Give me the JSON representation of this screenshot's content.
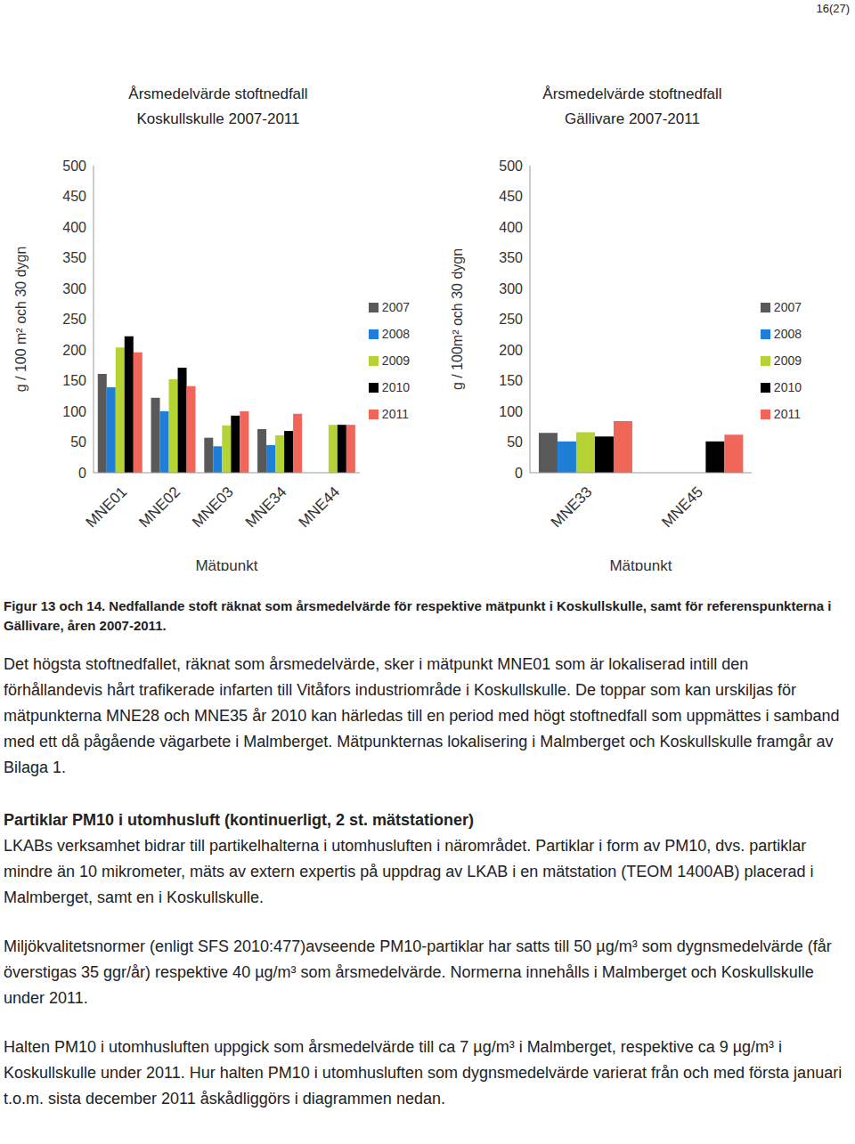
{
  "page_number": "16(27)",
  "chart_data": [
    {
      "type": "bar",
      "title": "Årsmedelvärde stoftnedfall\nKoskullskulle 2007-2011",
      "y_label": "g / 100 m² och 30 dygn",
      "x_label": "Mätpunkt",
      "categories": [
        "MNE01",
        "MNE02",
        "MNE03",
        "MNE34",
        "MNE44"
      ],
      "series": [
        {
          "name": "2007",
          "color": "#595959",
          "values": [
            161,
            122,
            57,
            71,
            null
          ]
        },
        {
          "name": "2008",
          "color": "#1f7fd6",
          "values": [
            139,
            100,
            43,
            45,
            null
          ]
        },
        {
          "name": "2009",
          "color": "#b5d334",
          "values": [
            204,
            152,
            77,
            61,
            78
          ]
        },
        {
          "name": "2010",
          "color": "#000000",
          "values": [
            222,
            171,
            93,
            68,
            78
          ]
        },
        {
          "name": "2011",
          "color": "#f0675a",
          "values": [
            196,
            141,
            100,
            96,
            78
          ]
        }
      ],
      "ylim": [
        0,
        500
      ],
      "yticks": [
        0,
        50,
        100,
        150,
        200,
        250,
        300,
        350,
        400,
        450,
        500
      ],
      "grid": false,
      "legend": "right"
    },
    {
      "type": "bar",
      "title": "Årsmedelvärde stoftnedfall\nGällivare 2007-2011",
      "y_label": "g / 100m² och 30 dygn",
      "x_label": "Mätpunkt",
      "categories": [
        "MNE33",
        "MNE45"
      ],
      "series": [
        {
          "name": "2007",
          "color": "#595959",
          "values": [
            65,
            null
          ]
        },
        {
          "name": "2008",
          "color": "#1f7fd6",
          "values": [
            51,
            null
          ]
        },
        {
          "name": "2009",
          "color": "#b5d334",
          "values": [
            66,
            null
          ]
        },
        {
          "name": "2010",
          "color": "#000000",
          "values": [
            59,
            51
          ]
        },
        {
          "name": "2011",
          "color": "#f0675a",
          "values": [
            84,
            62
          ]
        }
      ],
      "ylim": [
        0,
        500
      ],
      "yticks": [
        0,
        50,
        100,
        150,
        200,
        250,
        300,
        350,
        400,
        450,
        500
      ],
      "grid": false,
      "legend": "right"
    }
  ],
  "document": {
    "caption": "Figur 13 och 14. Nedfallande stoft räknat som årsmedelvärde för respektive mätpunkt i Koskullskulle, samt för referenspunkterna i Gällivare, åren 2007-2011.",
    "paragraphs": [
      {
        "bold": false,
        "text": "Det högsta stoftnedfallet, räknat som årsmedelvärde, sker i mätpunkt MNE01 som är lokaliserad intill den förhållandevis hårt trafikerade infarten till Vitåfors industriområde i Koskullskulle. De toppar som kan urskiljas för mätpunkterna MNE28 och MNE35 år 2010 kan härledas till en period med högt stoftnedfall som uppmättes i samband med ett då pågående vägarbete i Malmberget. Mätpunkternas lokalisering i Malmberget och Koskullskulle framgår av Bilaga 1."
      },
      {
        "bold": true,
        "text": "Partiklar PM10 i utomhusluft (kontinuerligt, 2 st. mätstationer)"
      },
      {
        "bold": false,
        "text": "LKABs verksamhet bidrar till partikelhalterna i utomhusluften i närområdet. Partiklar i form av PM10, dvs. partiklar mindre än 10 mikrometer, mäts av extern expertis på uppdrag av LKAB i en mätstation (TEOM 1400AB) placerad i Malmberget, samt en i Koskullskulle."
      },
      {
        "bold": false,
        "text": "Miljökvalitetsnormer (enligt SFS 2010:477)avseende PM10-partiklar har satts till 50 µg/m³ som dygnsmedelvärde (får överstigas 35 ggr/år) respektive 40 µg/m³ som årsmedelvärde. Normerna innehålls i Malmberget och Koskullskulle under 2011."
      },
      {
        "bold": false,
        "text": "Halten PM10 i utomhusluften uppgick som årsmedelvärde till ca 7 µg/m³ i Malmberget, respektive ca 9 µg/m³ i Koskullskulle under 2011. Hur halten PM10 i utomhusluften som dygnsmedelvärde varierat från och med första januari t.o.m. sista december 2011 åskådliggörs i diagrammen nedan."
      }
    ]
  }
}
